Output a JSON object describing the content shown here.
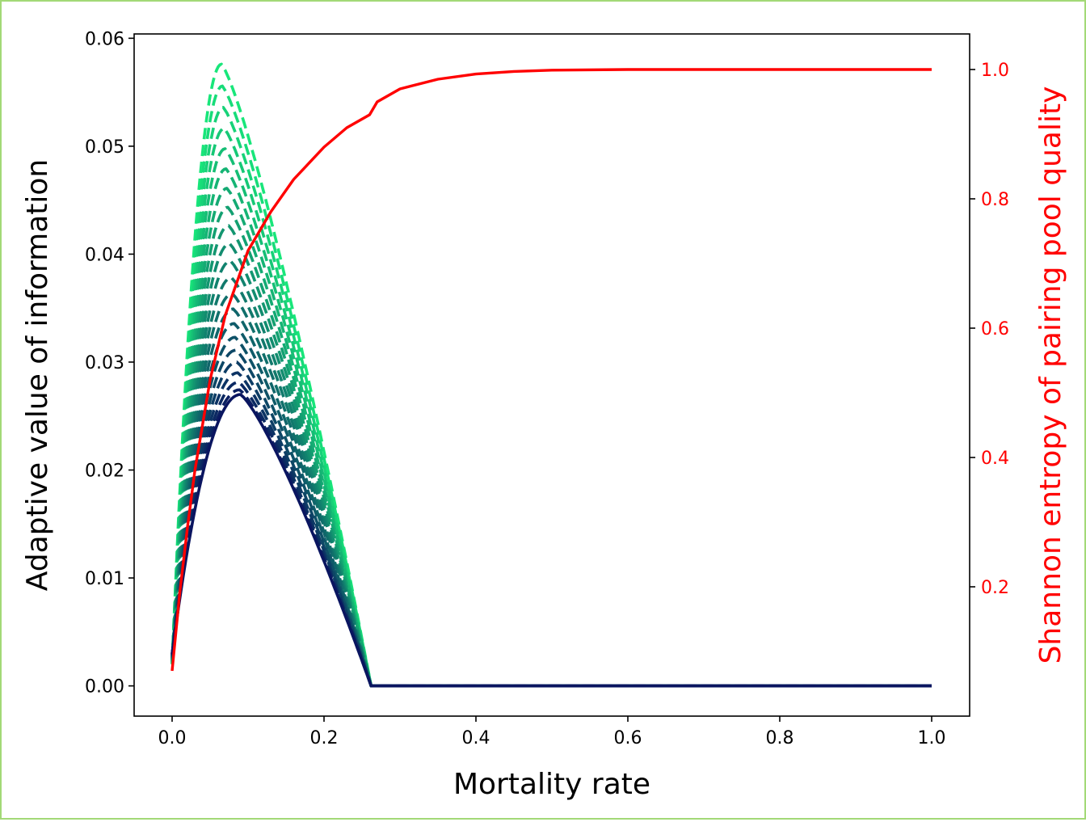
{
  "chart_data": {
    "type": "line",
    "xlabel": "Mortality rate",
    "ylabel": "Adaptive value of information",
    "ylabel_right": "Shannon entropy of pairing pool quality",
    "xlim": [
      -0.05,
      1.05
    ],
    "ylim": [
      -0.0028,
      0.0604
    ],
    "ylim_right": [
      0.0,
      1.055
    ],
    "x_ticks": [
      "0.0",
      "0.2",
      "0.4",
      "0.6",
      "0.8",
      "1.0"
    ],
    "y_ticks": [
      "0.00",
      "0.01",
      "0.02",
      "0.03",
      "0.04",
      "0.05",
      "0.06"
    ],
    "y_ticks_right": [
      "0.2",
      "0.4",
      "0.6",
      "0.8",
      "1.0"
    ],
    "grid": false,
    "colors": {
      "entropy_line": "#ff0000",
      "value_gradient_start": "#0a1560",
      "value_gradient_end": "#18e67a"
    },
    "value_curves": {
      "style": "dashed",
      "count": 22,
      "x_start": 0.0,
      "x_zero": 0.262,
      "x_end": 1.0,
      "peak_value_min": 0.027,
      "peak_value_max": 0.0576,
      "peak_x_at_min": 0.09,
      "peak_x_at_max": 0.065
    },
    "entropy_series": {
      "name": "Shannon entropy of pairing pool quality",
      "x": [
        0.0,
        0.01,
        0.02,
        0.03,
        0.05,
        0.07,
        0.1,
        0.13,
        0.16,
        0.2,
        0.23,
        0.26,
        0.27,
        0.3,
        0.35,
        0.4,
        0.45,
        0.5,
        0.6,
        0.7,
        0.8,
        0.9,
        1.0
      ],
      "y": [
        0.07,
        0.19,
        0.29,
        0.38,
        0.52,
        0.62,
        0.72,
        0.78,
        0.83,
        0.88,
        0.91,
        0.93,
        0.95,
        0.97,
        0.985,
        0.993,
        0.997,
        0.999,
        1.0,
        1.0,
        1.0,
        1.0,
        1.0
      ]
    }
  }
}
